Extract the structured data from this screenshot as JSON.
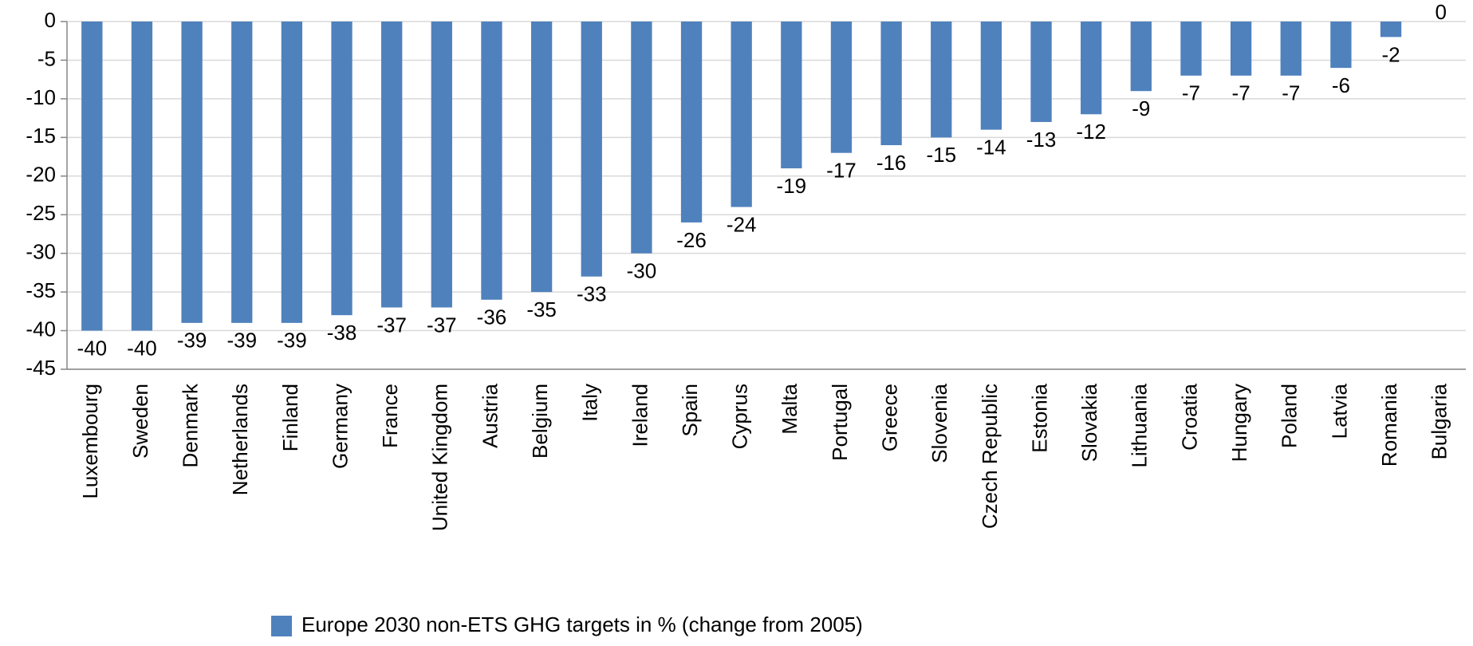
{
  "chart_data": {
    "type": "bar",
    "categories": [
      "Luxembourg",
      "Sweden",
      "Denmark",
      "Netherlands",
      "Finland",
      "Germany",
      "France",
      "United Kingdom",
      "Austria",
      "Belgium",
      "Italy",
      "Ireland",
      "Spain",
      "Cyprus",
      "Malta",
      "Portugal",
      "Greece",
      "Slovenia",
      "Czech Republic",
      "Estonia",
      "Slovakia",
      "Lithuania",
      "Croatia",
      "Hungary",
      "Poland",
      "Latvia",
      "Romania",
      "Bulgaria"
    ],
    "series": [
      {
        "name": "Europe 2030 non-ETS GHG targets in % (change from 2005)",
        "color": "#4f81bd",
        "values": [
          -40,
          -40,
          -39,
          -39,
          -39,
          -38,
          -37,
          -37,
          -36,
          -35,
          -33,
          -30,
          -26,
          -24,
          -19,
          -17,
          -16,
          -15,
          -14,
          -13,
          -12,
          -9,
          -7,
          -7,
          -7,
          -6,
          -2,
          0
        ]
      }
    ],
    "ylim": [
      -45,
      0
    ],
    "yticks": [
      0,
      -5,
      -10,
      -15,
      -20,
      -25,
      -30,
      -35,
      -40,
      -45
    ],
    "grid": true,
    "legend": "bottom"
  }
}
